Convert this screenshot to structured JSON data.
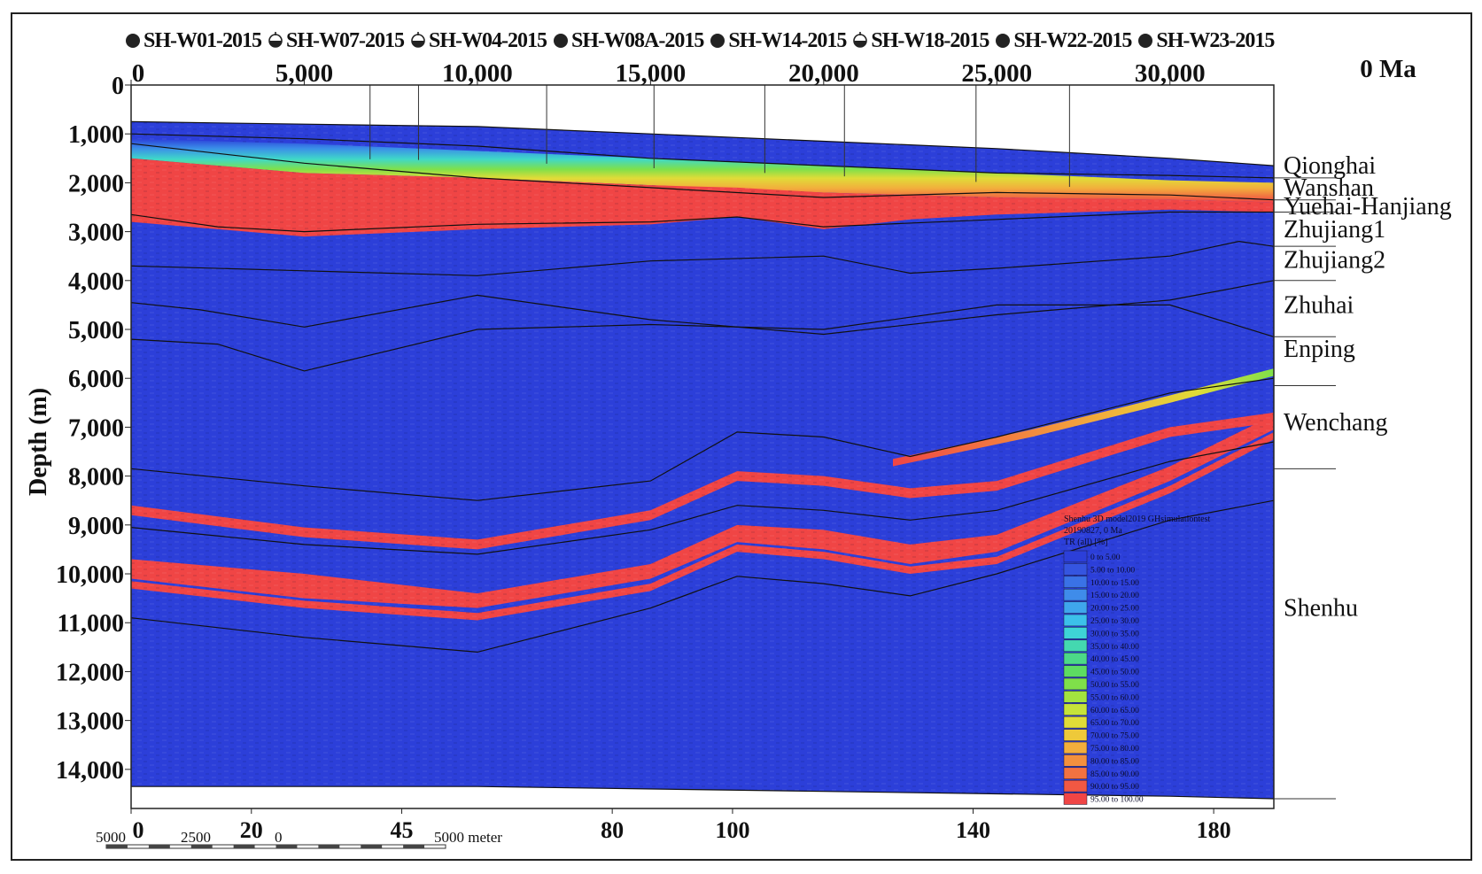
{
  "chart_data": {
    "type": "area",
    "title": "",
    "time_label": "0 Ma",
    "ylabel": "Depth (m)",
    "xlabel": "",
    "x_top": {
      "unit": "m",
      "range": [
        0,
        33000
      ],
      "ticks": [
        "0",
        "5,000",
        "10,000",
        "15,000",
        "20,000",
        "25,000",
        "30,000"
      ],
      "tick_values": [
        0,
        5000,
        10000,
        15000,
        20000,
        25000,
        30000
      ]
    },
    "x_bottom": {
      "range": [
        0,
        190
      ],
      "ticks": [
        "0",
        "20",
        "45",
        "80",
        "100",
        "140",
        "180"
      ],
      "tick_values": [
        0,
        20,
        45,
        80,
        100,
        140,
        180
      ]
    },
    "y": {
      "range": [
        0,
        14800
      ],
      "inverted": true,
      "ticks": [
        "0",
        "1,000",
        "2,000",
        "3,000",
        "4,000",
        "5,000",
        "6,000",
        "7,000",
        "8,000",
        "9,000",
        "10,000",
        "11,000",
        "12,000",
        "13,000",
        "14,000"
      ],
      "tick_values": [
        0,
        1000,
        2000,
        3000,
        4000,
        5000,
        6000,
        7000,
        8000,
        9000,
        10000,
        11000,
        12000,
        13000,
        14000
      ]
    },
    "wells": [
      {
        "name": "SH-W01-2015",
        "symbol": "dot",
        "x": 6900
      },
      {
        "name": "SH-W07-2015",
        "symbol": "gas",
        "x": 8300
      },
      {
        "name": "SH-W04-2015",
        "symbol": "gas",
        "x": 12000
      },
      {
        "name": "SH-W08A-2015",
        "symbol": "dot",
        "x": 15100
      },
      {
        "name": "SH-W14-2015",
        "symbol": "dot",
        "x": 18300
      },
      {
        "name": "SH-W18-2015",
        "symbol": "gas",
        "x": 20600
      },
      {
        "name": "SH-W22-2015",
        "symbol": "dot",
        "x": 24400
      },
      {
        "name": "SH-W23-2015",
        "symbol": "dot",
        "x": 27100
      }
    ],
    "formations": [
      {
        "name": "Qionghai",
        "label_depth": 1650
      },
      {
        "name": "Wanshan",
        "label_depth": 2100
      },
      {
        "name": "Yuehai-Hanjiang",
        "label_depth": 2480
      },
      {
        "name": "Zhujiang1",
        "label_depth": 2950
      },
      {
        "name": "Zhujiang2",
        "label_depth": 3580
      },
      {
        "name": "Zhuhai",
        "label_depth": 4500
      },
      {
        "name": "Enping",
        "label_depth": 5400
      },
      {
        "name": "Wenchang",
        "label_depth": 6900
      },
      {
        "name": "Shenhu",
        "label_depth": 10700
      }
    ],
    "formation_dividers": [
      1900,
      2350,
      2600,
      3300,
      4000,
      5150,
      6150,
      7850,
      14600
    ],
    "horizons": [
      {
        "name": "seafloor",
        "x": [
          0,
          5000,
          10000,
          15000,
          20000,
          25000,
          30000,
          33000
        ],
        "y": [
          750,
          800,
          850,
          1000,
          1150,
          1300,
          1500,
          1650
        ]
      },
      {
        "name": "h1",
        "x": [
          0,
          5000,
          10000,
          15000,
          20000,
          25000,
          30000,
          33000
        ],
        "y": [
          1000,
          1100,
          1250,
          1500,
          1650,
          1800,
          1850,
          1900
        ]
      },
      {
        "name": "h2",
        "x": [
          0,
          5000,
          10000,
          15000,
          20000,
          25000,
          30000,
          33000
        ],
        "y": [
          1200,
          1600,
          1900,
          2100,
          2300,
          2200,
          2250,
          2350
        ]
      },
      {
        "name": "h3",
        "x": [
          0,
          2500,
          5000,
          10000,
          15000,
          17500,
          20000,
          25000,
          30000,
          33000
        ],
        "y": [
          2650,
          2900,
          3000,
          2850,
          2800,
          2700,
          2900,
          2750,
          2600,
          2600
        ]
      },
      {
        "name": "h4",
        "x": [
          0,
          5000,
          10000,
          15000,
          20000,
          22500,
          25000,
          30000,
          32000,
          33000
        ],
        "y": [
          3700,
          3800,
          3900,
          3600,
          3500,
          3850,
          3750,
          3500,
          3200,
          3300
        ]
      },
      {
        "name": "h5",
        "x": [
          0,
          2000,
          5000,
          10000,
          15000,
          20000,
          25000,
          30000,
          33000
        ],
        "y": [
          4450,
          4600,
          4950,
          4300,
          4800,
          5100,
          4700,
          4400,
          4000
        ]
      },
      {
        "name": "h6",
        "x": [
          0,
          2500,
          5000,
          10000,
          15000,
          20000,
          25000,
          30000,
          33000
        ],
        "y": [
          5200,
          5300,
          5850,
          5000,
          4900,
          5000,
          4500,
          4500,
          5150
        ]
      },
      {
        "name": "h7",
        "x": [
          0,
          5000,
          10000,
          15000,
          17500,
          20000,
          22500,
          25000,
          30000,
          33000
        ],
        "y": [
          7850,
          8200,
          8500,
          8100,
          7100,
          7200,
          7600,
          7200,
          6300,
          6000
        ]
      },
      {
        "name": "h8",
        "x": [
          0,
          5000,
          10000,
          15000,
          17500,
          20000,
          22500,
          25000,
          30000,
          33000
        ],
        "y": [
          9050,
          9400,
          9600,
          9100,
          8600,
          8700,
          8900,
          8700,
          7700,
          7300
        ]
      },
      {
        "name": "h9",
        "x": [
          0,
          5000,
          10000,
          15000,
          17500,
          20000,
          22500,
          25000,
          30000,
          33000
        ],
        "y": [
          10900,
          11300,
          11600,
          10700,
          10050,
          10200,
          10450,
          10000,
          8900,
          8500
        ]
      },
      {
        "name": "basement",
        "x": [
          0,
          10000,
          20000,
          30000,
          33000
        ],
        "y": [
          14350,
          14350,
          14450,
          14550,
          14600
        ]
      }
    ],
    "hydrate_zones": [
      {
        "x": [
          0,
          5000,
          10000,
          15000,
          17500,
          20000,
          22500,
          25000,
          30000,
          33000
        ],
        "top": [
          1500,
          1800,
          1900,
          2050,
          2100,
          2200,
          2250,
          2300,
          2350,
          2400
        ],
        "bottom": [
          2800,
          3100,
          2950,
          2850,
          2700,
          2950,
          2750,
          2650,
          2550,
          2600
        ],
        "color": "#f04545"
      },
      {
        "x": [
          0,
          5000,
          10000,
          15000,
          17500,
          20000,
          22500,
          25000,
          30000,
          33000
        ],
        "top": [
          8600,
          9050,
          9300,
          8700,
          7900,
          8000,
          8250,
          8100,
          7000,
          6700
        ],
        "bottom": [
          8800,
          9250,
          9500,
          8900,
          8100,
          8200,
          8450,
          8300,
          7200,
          6900
        ],
        "color": "#f04545"
      },
      {
        "x": [
          0,
          5000,
          10000,
          15000,
          17500,
          20000,
          22500,
          25000,
          30000,
          33000
        ],
        "top": [
          9700,
          10000,
          10400,
          9800,
          9000,
          9100,
          9400,
          9200,
          7800,
          6750
        ],
        "bottom": [
          10100,
          10500,
          10700,
          10100,
          9350,
          9500,
          9800,
          9550,
          8100,
          7050
        ],
        "color": "#f04545"
      },
      {
        "x": [
          0,
          5000,
          10000,
          15000,
          17500,
          20000,
          22500,
          25000,
          30000,
          33000
        ],
        "top": [
          10150,
          10550,
          10800,
          10200,
          9400,
          9550,
          9850,
          9650,
          8200,
          7100
        ],
        "bottom": [
          10300,
          10700,
          10950,
          10350,
          9550,
          9700,
          10000,
          9800,
          8350,
          7250
        ],
        "color": "#f04545"
      }
    ],
    "seam_zone": {
      "x": [
        22000,
        26000,
        30000,
        33000
      ],
      "top": [
        7650,
        7050,
        6350,
        5800
      ],
      "bottom": [
        7800,
        7200,
        6500,
        5950
      ]
    },
    "gradient_band": {
      "x": [
        0,
        5000,
        10000,
        15000,
        20000,
        25000,
        30000,
        33000
      ],
      "top": [
        1100,
        1200,
        1350,
        1500,
        1650,
        1800,
        1950,
        2000
      ],
      "bottom": [
        1500,
        1800,
        1900,
        2050,
        2200,
        2300,
        2350,
        2400
      ]
    },
    "colorscale": {
      "title_lines": [
        "Shenhu 3D model2019 GHsimulationtest",
        "20190827, 0 Ma",
        "TR (all) [%]"
      ],
      "labels": [
        "0 to 5.00",
        "5.00 to 10.00",
        "10.00 to 15.00",
        "15.00 to 20.00",
        "20.00 to 25.00",
        "25.00 to 30.00",
        "30.00 to 35.00",
        "35.00 to 40.00",
        "40.00 to 45.00",
        "45.00 to 50.00",
        "50.00 to 55.00",
        "55.00 to 60.00",
        "60.00 to 65.00",
        "65.00 to 70.00",
        "70.00 to 75.00",
        "75.00 to 80.00",
        "80.00 to 85.00",
        "85.00 to 90.00",
        "90.00 to 95.00",
        "95.00 to 100.00"
      ],
      "colors": [
        "#2c3fd9",
        "#3555e0",
        "#3a72e6",
        "#3f8cea",
        "#3fa6ec",
        "#3cc0ea",
        "#3ed3d6",
        "#44d8b0",
        "#4cd988",
        "#5ddc62",
        "#7fe04a",
        "#a3e33f",
        "#c6e33a",
        "#e0dc38",
        "#eec93a",
        "#f2ae3c",
        "#f3903e",
        "#f27241",
        "#f15843",
        "#f04545"
      ]
    },
    "scale_bar": {
      "labels": [
        "5000",
        "2500",
        "0",
        "5000 meter"
      ],
      "values": [
        5000,
        2500,
        0,
        5000
      ]
    },
    "background_color": "#2c3fd9",
    "hydrate_color": "#f04545"
  }
}
